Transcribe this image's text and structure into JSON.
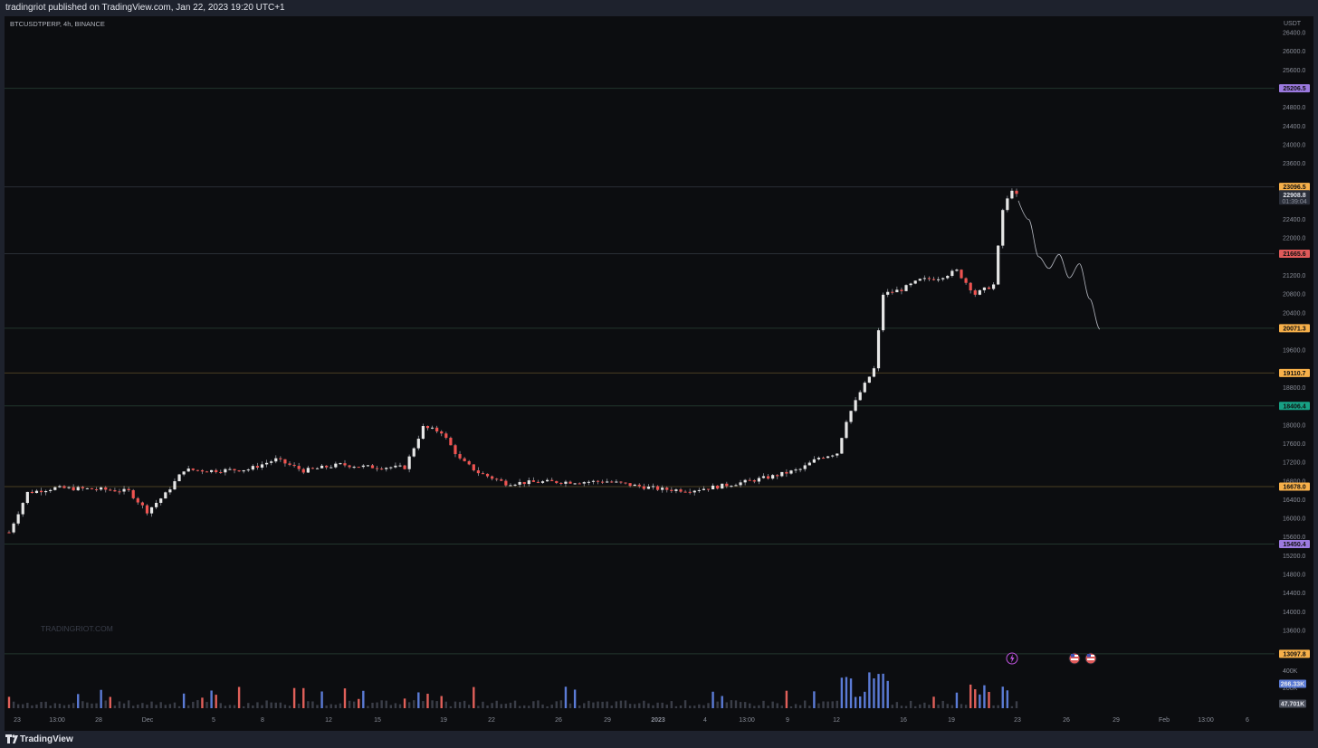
{
  "header": {
    "published_line": "tradingriot published on TradingView.com, Jan 22, 2023 19:20 UTC+1"
  },
  "footer": {
    "brand": "TradingView",
    "logo_icon": "tradingview-logo-icon"
  },
  "chart_data": {
    "type": "candlestick",
    "symbol_line": "BTCUSDTPERP, 4h, BINANCE",
    "watermark": "TRADINGRIOT.COM",
    "currency": "USDT",
    "grid": false,
    "colors": {
      "background": "#0c0d10",
      "candle_up": "#e6e6e6",
      "candle_down": "#ef5350",
      "wick": "#9598a1",
      "volume_up": "#5b7bd5",
      "volume_down": "#e0605a",
      "projection": "#b2b5be"
    },
    "y_axis": {
      "range": [
        12800,
        26600
      ],
      "ticks": [
        "26400.0",
        "26000.0",
        "25600.0",
        "24800.0",
        "24400.0",
        "24000.0",
        "23600.0",
        "22400.0",
        "22000.0",
        "21200.0",
        "20800.0",
        "20400.0",
        "19600.0",
        "18800.0",
        "18000.0",
        "17600.0",
        "17200.0",
        "16800.0",
        "16400.0",
        "16000.0",
        "15600.0",
        "15200.0",
        "14800.0",
        "14400.0",
        "14000.0",
        "13600.0"
      ],
      "tick_values": [
        26400,
        26000,
        25600,
        24800,
        24400,
        24000,
        23600,
        22400,
        22000,
        21200,
        20800,
        20400,
        19600,
        18800,
        18000,
        17600,
        17200,
        16800,
        16400,
        16000,
        15600,
        15200,
        14800,
        14400,
        14000,
        13600
      ]
    },
    "x_axis": {
      "ticks": [
        "23",
        "13:00",
        "28",
        "Dec",
        "5",
        "8",
        "12",
        "15",
        "19",
        "22",
        "26",
        "29",
        "2023",
        "4",
        "13:00",
        "9",
        "12",
        "16",
        "19",
        "23",
        "26",
        "29",
        "Feb",
        "13:00",
        "6"
      ],
      "bold": [
        "2023"
      ]
    },
    "levels": [
      {
        "value": 25206.5,
        "label": "25206.5",
        "color": "#9c7ae0",
        "line": "#22362d"
      },
      {
        "value": 23096.5,
        "label": "23096.5",
        "color": "#f7b04a",
        "line": "#2a2f36"
      },
      {
        "value": 21665.6,
        "label": "21665.6",
        "color": "#e05a5a",
        "line": "#2a2f36"
      },
      {
        "value": 20071.3,
        "label": "20071.3",
        "color": "#f7b04a",
        "line": "#22362d"
      },
      {
        "value": 19110.7,
        "label": "19110.7",
        "color": "#f7b04a",
        "line": "#4a3f22"
      },
      {
        "value": 18406.4,
        "label": "18406.4",
        "color": "#17a185",
        "line": "#22362d"
      },
      {
        "value": 16678.0,
        "label": "16678.0",
        "color": "#f7b04a",
        "line": "#4a3f22"
      },
      {
        "value": 15450.4,
        "label": "15450.4",
        "color": "#9c7ae0",
        "line": "#22362d"
      },
      {
        "value": 13097.8,
        "label": "13097.8",
        "color": "#f7b04a",
        "line": "#22362d"
      }
    ],
    "last_price": {
      "value": 22908.8,
      "label": "22908.8",
      "countdown": "01:39:04"
    },
    "volume_axis": {
      "ticks": [
        "400K",
        "200K"
      ],
      "labels": [
        {
          "label": "266.33K",
          "color": "#5b7bd5"
        },
        {
          "label": "47.701K",
          "color": "#4a4e5a"
        }
      ]
    },
    "series": [
      {
        "name": "price",
        "x_index": [
          0,
          219
        ],
        "values_ohlc_path": [
          [
            0,
            15700
          ],
          [
            4,
            16550
          ],
          [
            10,
            16650
          ],
          [
            20,
            16620
          ],
          [
            26,
            16580
          ],
          [
            30,
            16150
          ],
          [
            34,
            16520
          ],
          [
            38,
            17040
          ],
          [
            44,
            17020
          ],
          [
            52,
            17050
          ],
          [
            58,
            17260
          ],
          [
            64,
            17020
          ],
          [
            72,
            17150
          ],
          [
            78,
            17100
          ],
          [
            86,
            17090
          ],
          [
            90,
            17950
          ],
          [
            94,
            17850
          ],
          [
            98,
            17260
          ],
          [
            102,
            16980
          ],
          [
            108,
            16750
          ],
          [
            116,
            16780
          ],
          [
            124,
            16780
          ],
          [
            130,
            16790
          ],
          [
            136,
            16700
          ],
          [
            142,
            16620
          ],
          [
            148,
            16600
          ],
          [
            154,
            16680
          ],
          [
            160,
            16780
          ],
          [
            166,
            16900
          ],
          [
            172,
            17050
          ],
          [
            176,
            17300
          ],
          [
            180,
            17400
          ],
          [
            182,
            18100
          ],
          [
            185,
            18700
          ],
          [
            188,
            19200
          ],
          [
            190,
            20800
          ],
          [
            194,
            20900
          ],
          [
            198,
            21100
          ],
          [
            202,
            21150
          ],
          [
            206,
            21300
          ],
          [
            210,
            20800
          ],
          [
            214,
            21000
          ],
          [
            216,
            22600
          ],
          [
            218,
            23050
          ],
          [
            219,
            22908.8
          ]
        ]
      }
    ],
    "projection": [
      [
        22800,
        0
      ],
      [
        22400,
        1
      ],
      [
        21600,
        2
      ],
      [
        21350,
        3
      ],
      [
        21650,
        4
      ],
      [
        21150,
        5
      ],
      [
        21450,
        6
      ],
      [
        20700,
        7
      ],
      [
        20050,
        8
      ]
    ],
    "event_icons": [
      "lightning-event-icon",
      "us-flag-event-icon",
      "us-flag-event-icon"
    ]
  }
}
